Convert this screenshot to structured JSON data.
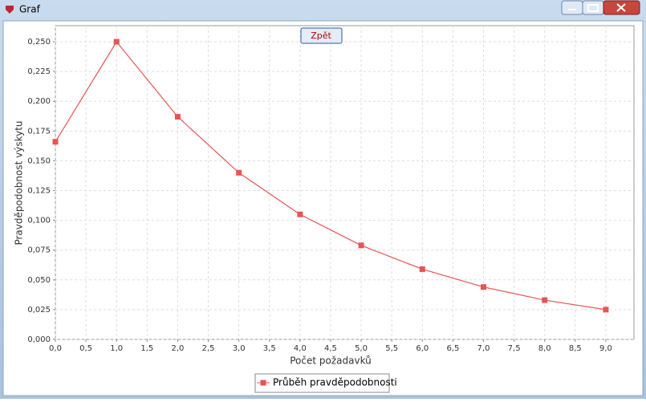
{
  "window": {
    "title": "Graf",
    "button": "Zpět"
  },
  "chart_data": {
    "type": "line",
    "x_label": "Počet požadavků",
    "y_label": "Pravděpodobnost výskytu",
    "x": [
      0,
      1,
      2,
      3,
      4,
      5,
      6,
      7,
      8,
      9
    ],
    "series": [
      {
        "name": "Průběh pravděpodobnosti",
        "color": "#e85454",
        "values": [
          0.166,
          0.25,
          0.187,
          0.14,
          0.105,
          0.079,
          0.059,
          0.044,
          0.033,
          0.025
        ]
      }
    ],
    "xlim": [
      0,
      9.46
    ],
    "ylim": [
      0,
      0.2635
    ],
    "xticks": [
      {
        "value": 0,
        "label": "0,0"
      },
      {
        "value": 0.5,
        "label": "0,5"
      },
      {
        "value": 1,
        "label": "1,0"
      },
      {
        "value": 1.5,
        "label": "1,5"
      },
      {
        "value": 2,
        "label": "2,0"
      },
      {
        "value": 2.5,
        "label": "2,5"
      },
      {
        "value": 3,
        "label": "3,0"
      },
      {
        "value": 3.5,
        "label": "3,5"
      },
      {
        "value": 4,
        "label": "4,0"
      },
      {
        "value": 4.5,
        "label": "4,5"
      },
      {
        "value": 5,
        "label": "5,0"
      },
      {
        "value": 5.5,
        "label": "5,5"
      },
      {
        "value": 6,
        "label": "6,0"
      },
      {
        "value": 6.5,
        "label": "6,5"
      },
      {
        "value": 7,
        "label": "7,0"
      },
      {
        "value": 7.5,
        "label": "7,5"
      },
      {
        "value": 8,
        "label": "8,0"
      },
      {
        "value": 8.5,
        "label": "8,5"
      },
      {
        "value": 9,
        "label": "9,0"
      }
    ],
    "yticks": [
      {
        "value": 0,
        "label": "0,000"
      },
      {
        "value": 0.025,
        "label": "0,025"
      },
      {
        "value": 0.05,
        "label": "0,050"
      },
      {
        "value": 0.075,
        "label": "0,075"
      },
      {
        "value": 0.1,
        "label": "0,100"
      },
      {
        "value": 0.125,
        "label": "0,125"
      },
      {
        "value": 0.15,
        "label": "0,150"
      },
      {
        "value": 0.175,
        "label": "0,175"
      },
      {
        "value": 0.2,
        "label": "0,200"
      },
      {
        "value": 0.225,
        "label": "0,225"
      },
      {
        "value": 0.25,
        "label": "0,250"
      }
    ],
    "grid": true,
    "legend": "bottom"
  }
}
